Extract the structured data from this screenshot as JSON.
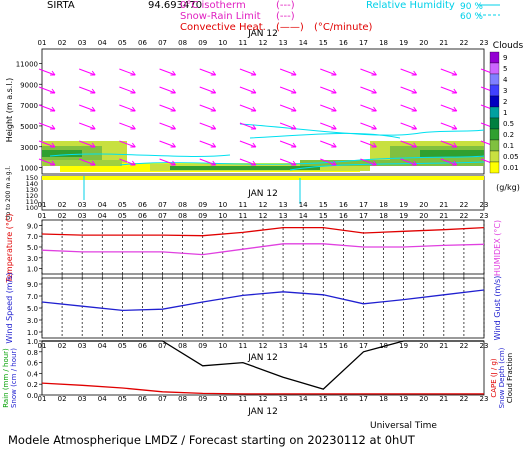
{
  "header": {
    "site": "SIRTA",
    "coord": "94.693470",
    "legend_items": [
      {
        "label": "0°C isotherm",
        "swatch": "(---)",
        "color": "#e020c0"
      },
      {
        "label": "Snow-Rain Limit",
        "swatch": "(---)",
        "color": "#e020c0"
      },
      {
        "label": "Convective Heat.",
        "swatch": "(——)",
        "unit": "(°C/minute)",
        "color": "#e00000"
      }
    ],
    "humidity_label": "Relative Humidity",
    "humidity_values": [
      "90 %",
      "60 %"
    ],
    "humidity_color": "#00d0e8"
  },
  "footer": {
    "text": "Modele Atmospherique LMDZ / Forecast starting on 20230112 at 0hUT",
    "axis_title": "Universal Time"
  },
  "chart_data": [
    {
      "id": "cloud-wind-panel",
      "type": "heatmap",
      "date_label": "JAN 12",
      "hours": [
        "01",
        "02",
        "03",
        "04",
        "05",
        "06",
        "07",
        "08",
        "09",
        "10",
        "11",
        "12",
        "13",
        "14",
        "15",
        "16",
        "17",
        "18",
        "19",
        "20",
        "21",
        "22",
        "23"
      ],
      "ylabel": "Height (m a.s.l.)",
      "yticks": [
        1000,
        3000,
        5000,
        7000,
        9000,
        11000
      ],
      "ylim": [
        0,
        12000
      ],
      "colorbar": {
        "title": "Clouds",
        "unit": "(g/kg)",
        "labels": [
          "9",
          "5",
          "4",
          "3",
          "2",
          "1",
          "0.5",
          "0.2",
          "0.1",
          "0.05",
          "0.01"
        ],
        "colors": [
          "#9400d3",
          "#cc66ff",
          "#8080ff",
          "#4040ff",
          "#0000c0",
          "#00a0a0",
          "#008040",
          "#30a030",
          "#80c040",
          "#c8e040",
          "#ffff00"
        ]
      },
      "wind_color": "#ff00ff",
      "humidity_color": "#00e0f0"
    },
    {
      "id": "low-level-panel",
      "type": "line",
      "ylabel": "Up to 200 m a.g.l.",
      "yticks": [
        100,
        110,
        120,
        130,
        140,
        150
      ],
      "date_label": "JAN 12"
    },
    {
      "id": "temperature-panel",
      "type": "line",
      "ylabel": "Temperature (°C)",
      "ylabel_right": "HUMIDEX (°C)",
      "yticks": [
        "1.0",
        "3.0",
        "5.0",
        "7.0",
        "9.0"
      ],
      "ylim": [
        0,
        10
      ],
      "series": [
        {
          "name": "Temperature",
          "color": "#e00000",
          "x": [
            1,
            3,
            5,
            7,
            9,
            11,
            13,
            15,
            17,
            19,
            21,
            23
          ],
          "values": [
            7.4,
            7.2,
            7.2,
            7.2,
            7.1,
            7.7,
            8.6,
            8.6,
            7.6,
            7.9,
            8.2,
            8.6
          ]
        },
        {
          "name": "HUMIDEX",
          "color": "#e040e0",
          "x": [
            1,
            3,
            5,
            7,
            9,
            11,
            13,
            15,
            17,
            19,
            21,
            23
          ],
          "values": [
            4.4,
            4.1,
            4.1,
            4.1,
            3.6,
            4.6,
            5.6,
            5.6,
            5.0,
            5.0,
            5.3,
            5.5
          ]
        }
      ]
    },
    {
      "id": "wind-panel",
      "type": "line",
      "ylabel": "Wind Speed (m/s)",
      "ylabel_right": "Wind Gust (m/s)",
      "yticks": [
        "1.0",
        "3.0",
        "5.0",
        "7.0",
        "9.0"
      ],
      "ylim": [
        0,
        10
      ],
      "series": [
        {
          "name": "Wind Speed",
          "color": "#2020d0",
          "x": [
            1,
            3,
            5,
            7,
            9,
            11,
            13,
            15,
            17,
            19,
            21,
            23
          ],
          "values": [
            6.0,
            5.3,
            4.6,
            4.8,
            6.0,
            7.1,
            7.7,
            7.2,
            5.7,
            6.4,
            7.2,
            8.0
          ]
        }
      ]
    },
    {
      "id": "precip-panel",
      "type": "line",
      "date_label": "JAN 12",
      "ylabel": "Rain (mm / hour)",
      "ylabel2": "Snow (cm / hour)",
      "ylabel_right": "CAPE (J / g)",
      "ylabel_right2": "Snow Depth (cm)",
      "ylabel_right3": "Cloud Fraction",
      "yticks": [
        "0.0",
        "0.2",
        "0.4",
        "0.6",
        "0.8",
        "1.0"
      ],
      "ylim": [
        0,
        1
      ],
      "series": [
        {
          "name": "Cloud Fraction",
          "color": "#000000",
          "x": [
            1,
            7,
            9,
            11,
            13,
            15,
            17,
            19,
            21,
            23
          ],
          "values": [
            1.0,
            1.0,
            0.54,
            0.6,
            0.33,
            0.11,
            0.8,
            1.0,
            1.0,
            1.0
          ]
        },
        {
          "name": "Rain",
          "color": "#e00000",
          "x": [
            1,
            3,
            5,
            7,
            9,
            11,
            13,
            15,
            17,
            19,
            21,
            23
          ],
          "values": [
            0.22,
            0.18,
            0.13,
            0.06,
            0.03,
            0.02,
            0.02,
            0.02,
            0.02,
            0.02,
            0.02,
            0.02
          ]
        }
      ]
    }
  ]
}
